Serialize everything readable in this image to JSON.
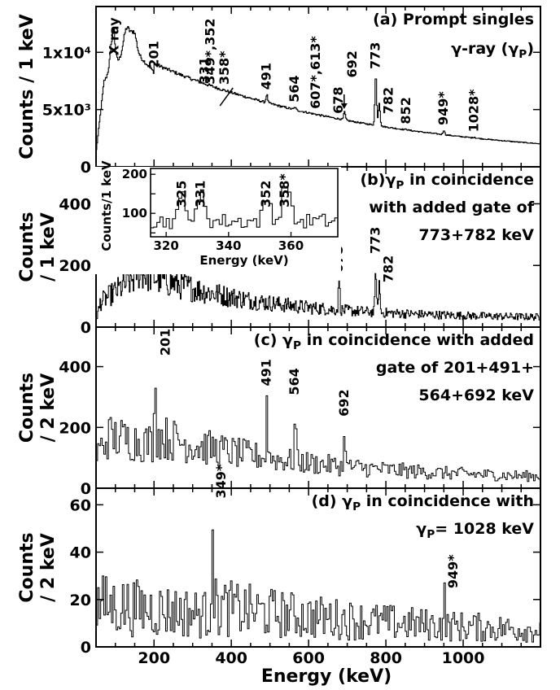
{
  "figure": {
    "xlabel": "Energy (keV)",
    "x_ticks": [
      200,
      400,
      600,
      800,
      1000
    ]
  },
  "chart_data": [
    {
      "type": "line",
      "id": "a",
      "title_lines": [
        "(a) Prompt singles",
        "γ-ray (γ_P)"
      ],
      "ylabel_lines": [
        "Counts / 1 keV"
      ],
      "xlim": [
        50,
        1200
      ],
      "ylim": [
        0,
        14000
      ],
      "y_ticks": [
        {
          "value": 0,
          "label": "0"
        },
        {
          "value": 5000,
          "label": "5x10³"
        },
        {
          "value": 10000,
          "label": "1x10⁴"
        }
      ],
      "peaks": [
        {
          "label": "X ray",
          "x": 95,
          "y": 12000
        },
        {
          "label": "201",
          "x": 201,
          "y": 8200
        },
        {
          "label": "331",
          "x": 331,
          "y": 6800
        },
        {
          "label": "349*,352",
          "x": 350,
          "y": 6200
        },
        {
          "label": "358*",
          "x": 358,
          "y": 5600
        },
        {
          "label": "491",
          "x": 491,
          "y": 6300
        },
        {
          "label": "564",
          "x": 564,
          "y": 5200
        },
        {
          "label": "607*,613*",
          "x": 610,
          "y": 4200
        },
        {
          "label": "678",
          "x": 678,
          "y": 4200
        },
        {
          "label": "692",
          "x": 692,
          "y": 4800
        },
        {
          "label": "773",
          "x": 773,
          "y": 8100
        },
        {
          "label": "782",
          "x": 782,
          "y": 5600
        },
        {
          "label": "852",
          "x": 852,
          "y": 3300
        },
        {
          "label": "949*",
          "x": 949,
          "y": 3200
        },
        {
          "label": "1028*",
          "x": 1028,
          "y": 2600
        }
      ]
    },
    {
      "type": "line",
      "id": "b",
      "title_lines": [
        "(b)γ_P in coincidence",
        "with added gate of",
        "773+782 keV"
      ],
      "ylabel_lines": [
        "Counts",
        "/ 1 keV"
      ],
      "xlim": [
        50,
        1200
      ],
      "ylim": [
        0,
        520
      ],
      "y_ticks": [
        {
          "value": 0,
          "label": "0"
        },
        {
          "value": 200,
          "label": "200"
        },
        {
          "value": 400,
          "label": "400"
        }
      ],
      "peaks": [
        {
          "label": "678",
          "x": 678,
          "y": 160
        },
        {
          "label": "773",
          "x": 773,
          "y": 190
        },
        {
          "label": "782",
          "x": 782,
          "y": 150
        }
      ],
      "inset": {
        "xlabel": "Energy (keV)",
        "ylabel": "Counts/1 keV",
        "xlim": [
          315,
          375
        ],
        "ylim": [
          40,
          215
        ],
        "x_ticks": [
          320,
          340,
          360
        ],
        "y_ticks": [
          50,
          100,
          150,
          200
        ],
        "peaks": [
          {
            "label": "325",
            "x": 325
          },
          {
            "label": "331",
            "x": 331
          },
          {
            "label": "352",
            "x": 352
          },
          {
            "label": "358*",
            "x": 358
          }
        ]
      }
    },
    {
      "type": "line",
      "id": "c",
      "title_lines": [
        "(c) γ_P in coincidence with added",
        "gate of 201+491+",
        "564+692 keV"
      ],
      "ylabel_lines": [
        "Counts",
        "/ 2 keV"
      ],
      "xlim": [
        50,
        1200
      ],
      "ylim": [
        0,
        530
      ],
      "y_ticks": [
        {
          "value": 0,
          "label": "0"
        },
        {
          "value": 200,
          "label": "200"
        },
        {
          "value": 400,
          "label": "400"
        }
      ],
      "peaks": [
        {
          "label": "201",
          "x": 201,
          "y": 420
        },
        {
          "label": "491",
          "x": 491,
          "y": 320
        },
        {
          "label": "564",
          "x": 564,
          "y": 290
        },
        {
          "label": "692",
          "x": 692,
          "y": 220
        }
      ]
    },
    {
      "type": "line",
      "id": "d",
      "title_lines": [
        "(d) γ_P in coincidence with",
        "γ_P= 1028 keV"
      ],
      "ylabel_lines": [
        "Counts",
        "/ 2 keV"
      ],
      "xlim": [
        50,
        1200
      ],
      "ylim": [
        0,
        67
      ],
      "y_ticks": [
        {
          "value": 0,
          "label": "0"
        },
        {
          "value": 20,
          "label": "20"
        },
        {
          "value": 40,
          "label": "40"
        },
        {
          "value": 60,
          "label": "60"
        }
      ],
      "peaks": [
        {
          "label": "349*",
          "x": 349,
          "y": 62
        },
        {
          "label": "949*",
          "x": 949,
          "y": 24
        }
      ]
    }
  ]
}
